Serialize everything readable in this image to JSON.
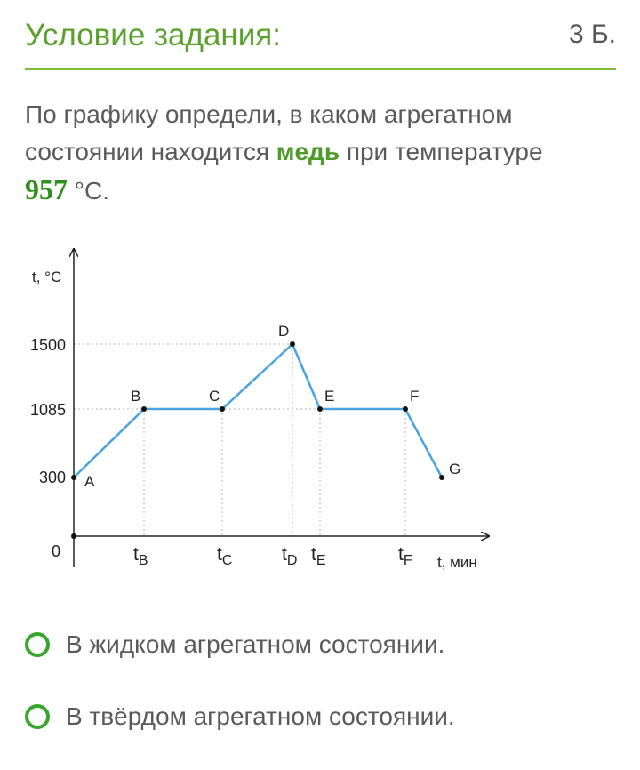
{
  "header": {
    "title": "Условие задания:",
    "points": "3 Б."
  },
  "question": {
    "part1": "По графику определи, в каком агрегатном состоянии находится ",
    "highlight": "медь",
    "part2": " при температуре ",
    "temperature": "957",
    "unit": " °C."
  },
  "chart_data": {
    "type": "line",
    "ylabel": "t, °C",
    "xlabel": "t, мин",
    "origin_label": "0",
    "y_ticks": [
      {
        "key": "y300",
        "label": "300",
        "value": 300
      },
      {
        "key": "y1085",
        "label": "1085",
        "value": 1085
      },
      {
        "key": "y1500",
        "label": "1500",
        "value": 1500
      }
    ],
    "x_ticks": [
      {
        "key": "tB",
        "main": "t",
        "sub": "B"
      },
      {
        "key": "tC",
        "main": "t",
        "sub": "C"
      },
      {
        "key": "tD",
        "main": "t",
        "sub": "D"
      },
      {
        "key": "tE",
        "main": "t",
        "sub": "E"
      },
      {
        "key": "tF",
        "main": "t",
        "sub": "F"
      }
    ],
    "points": [
      {
        "label": "A",
        "y": 300
      },
      {
        "label": "B",
        "y": 1085
      },
      {
        "label": "C",
        "y": 1085
      },
      {
        "label": "D",
        "y": 1500
      },
      {
        "label": "E",
        "y": 1085
      },
      {
        "label": "F",
        "y": 1085
      },
      {
        "label": "G",
        "y": 300
      }
    ],
    "line_color": "#4aa3df"
  },
  "options": [
    {
      "label": "В жидком агрегатном состоянии."
    },
    {
      "label": "В твёрдом агрегатном состоянии."
    }
  ]
}
